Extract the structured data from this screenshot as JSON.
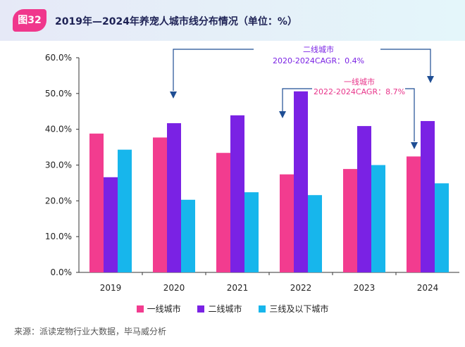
{
  "header": {
    "figure_label": "图32",
    "title": "2019年—2024年养宠人城市线分布情况（单位：%）"
  },
  "chart_data": {
    "type": "bar",
    "title": "2019年—2024年养宠人城市线分布情况（单位：%）",
    "categories": [
      "2019",
      "2020",
      "2021",
      "2022",
      "2023",
      "2024"
    ],
    "series": [
      {
        "name": "一线城市",
        "color": "#f23c8f",
        "values": [
          38.8,
          37.7,
          33.4,
          27.4,
          28.9,
          32.4
        ]
      },
      {
        "name": "二线城市",
        "color": "#7a22e4",
        "values": [
          26.6,
          41.7,
          43.9,
          50.6,
          40.9,
          42.3
        ]
      },
      {
        "name": "三线及以下城市",
        "color": "#17b6ec",
        "values": [
          34.3,
          20.3,
          22.4,
          21.6,
          30.0,
          24.9
        ]
      }
    ],
    "ylim": [
      0,
      60
    ],
    "yticks": [
      "0.0%",
      "10.0%",
      "20.0%",
      "30.0%",
      "40.0%",
      "50.0%",
      "60.0%"
    ],
    "annotations": [
      {
        "line1": "二线城市",
        "line2": "2020-2024CAGR：0.4%",
        "color": "#7a22e4"
      },
      {
        "line1": "一线城市",
        "line2": "2022-2024CAGR：8.7%",
        "color": "#e8348a"
      }
    ]
  },
  "legend": [
    "一线城市",
    "二线城市",
    "三线及以下城市"
  ],
  "source": "来源：派读宠物行业大数据，毕马威分析"
}
